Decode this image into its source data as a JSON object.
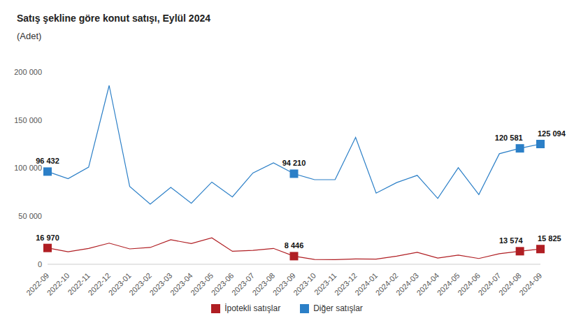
{
  "chart_data": {
    "type": "line",
    "title": "Satış şekline göre konut satışı, Eylül 2024",
    "subtitle": "(Adet)",
    "categories": [
      "2022-09",
      "2022-10",
      "2022-11",
      "2022-12",
      "2023-01",
      "2023-02",
      "2023-03",
      "2023-04",
      "2023-05",
      "2023-06",
      "2023-07",
      "2023-08",
      "2023-09",
      "2023-10",
      "2023-11",
      "2023-12",
      "2024-01",
      "2024-02",
      "2024-03",
      "2024-04",
      "2024-05",
      "2024-06",
      "2024-07",
      "2024-08",
      "2024-09"
    ],
    "series": [
      {
        "name": "İpotekli satışlar",
        "color": "#b01e23",
        "marker": "square",
        "values": [
          16970,
          13000,
          16500,
          22000,
          16000,
          17500,
          25500,
          21500,
          27500,
          13500,
          14500,
          16500,
          8446,
          5000,
          4800,
          5500,
          5300,
          8500,
          12500,
          6500,
          9500,
          6000,
          11000,
          13574,
          15825
        ],
        "value_labels": [
          "16 970",
          null,
          null,
          null,
          null,
          null,
          null,
          null,
          null,
          null,
          null,
          null,
          "8 446",
          null,
          null,
          null,
          null,
          null,
          null,
          null,
          null,
          null,
          null,
          "13 574",
          "15 825"
        ]
      },
      {
        "name": "Diğer satışlar",
        "color": "#2b7fc7",
        "marker": "square",
        "values": [
          96432,
          89000,
          101000,
          186000,
          81000,
          62500,
          80000,
          63500,
          85500,
          70000,
          95000,
          105500,
          94210,
          88000,
          88000,
          132000,
          74000,
          85000,
          92500,
          68500,
          100500,
          72500,
          115000,
          120581,
          125094
        ],
        "value_labels": [
          "96 432",
          null,
          null,
          null,
          null,
          null,
          null,
          null,
          null,
          null,
          null,
          null,
          "94 210",
          null,
          null,
          null,
          null,
          null,
          null,
          null,
          null,
          null,
          null,
          "120 581",
          "125 094"
        ]
      }
    ],
    "ylim": [
      0,
      200000
    ],
    "yticks": [
      0,
      {
        "value": 50000,
        "label": "50 000"
      },
      {
        "value": 100000,
        "label": "100 000"
      },
      {
        "value": 150000,
        "label": "150 000"
      },
      {
        "value": 200000,
        "label": "200 000"
      }
    ],
    "grid": false,
    "legend": "bottom",
    "data_labels": true
  }
}
